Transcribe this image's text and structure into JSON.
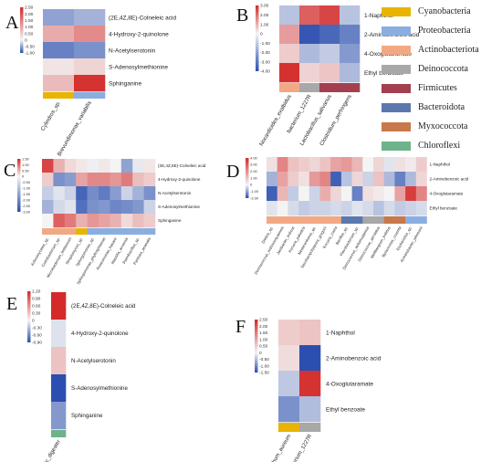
{
  "colors": {
    "red": "#d42a2a",
    "white": "#f4f4f4",
    "blue": "#2b4fb0"
  },
  "legend": [
    {
      "label": "Cyanobacteria",
      "color": "#e8b400"
    },
    {
      "label": "Proteobacteria",
      "color": "#8aaee0"
    },
    {
      "label": "Actinobacteriota",
      "color": "#f2a983"
    },
    {
      "label": "Deinococcota",
      "color": "#a8a8a8"
    },
    {
      "label": "Firmicutes",
      "color": "#a3404f"
    },
    {
      "label": "Bacteroidota",
      "color": "#5b78ad"
    },
    {
      "label": "Myxococcota",
      "color": "#c8784a"
    },
    {
      "label": "Chloroflexi",
      "color": "#6eb38a"
    }
  ],
  "chart_data": [
    {
      "id": "panel-a",
      "panel_label": "A",
      "type": "heatmap",
      "scale_ticks": [
        "2.50",
        "2.00",
        "1.50",
        "1.00",
        "0.50",
        "0",
        "-0.50",
        "-1.00"
      ],
      "vmin": -1,
      "vmax": 2.5,
      "rows": [
        "(2E,4Z,8E)-Colneleic acid",
        "4-Hydroxy-2-quinolone",
        "N-Acetylserotonin",
        "S-Adenosylmethionine",
        "Sphinganine"
      ],
      "columns": [
        "Cylindros_sp.",
        "Brevundimonas_variabilis"
      ],
      "column_groups": [
        "Cyanobacteria",
        "Proteobacteria"
      ],
      "values": [
        [
          -0.5,
          -0.4
        ],
        [
          0.9,
          1.3
        ],
        [
          -0.7,
          -0.6
        ],
        [
          0.2,
          0.4
        ],
        [
          0.7,
          2.4
        ]
      ]
    },
    {
      "id": "panel-b",
      "panel_label": "B",
      "type": "heatmap",
      "scale_ticks": [
        "3.00",
        "2.00",
        "1.00",
        "0",
        "-1.00",
        "-2.00",
        "-3.00",
        "-4.00"
      ],
      "vmin": -4,
      "vmax": 3,
      "rows": [
        "1-Naphthol",
        "2-Aminobenzoic acid",
        "4-Oxoglutaramate",
        "Ethyl benzoate"
      ],
      "columns": [
        "Nocardioides_exalbidus",
        "bacterium_1227R",
        "Lactobacillus_salivarius",
        "Clostridium_perfringens"
      ],
      "column_groups": [
        "Actinobacteriota",
        "Deinococcota",
        "Firmicutes",
        "Firmicutes"
      ],
      "values": [
        [
          -1.2,
          2.2,
          2.6,
          -1.2
        ],
        [
          1.3,
          -3.8,
          -3.4,
          -2.8
        ],
        [
          0.6,
          -1.4,
          -1.0,
          -2.2
        ],
        [
          2.9,
          0.5,
          0.7,
          -1.4
        ]
      ]
    },
    {
      "id": "panel-c",
      "panel_label": "C",
      "type": "heatmap",
      "scale_ticks": [
        "1.50",
        "1.00",
        "0.50",
        "0",
        "-0.50",
        "-1.00",
        "-1.50",
        "-2.00",
        "-2.50",
        "-3.00"
      ],
      "vmin": -3,
      "vmax": 1.5,
      "rows": [
        "(2E,4Z,8E)-Colneleic acid",
        "4-Hydroxy-2-quinolone",
        "N-Acetylserotonin",
        "S-Adenosylmethionine",
        "Sphinganine"
      ],
      "columns": [
        "Actinomycetes_sp.",
        "Curtobacterium_sp.",
        "Microbacterium_testaceum",
        "Streptomyces_sp.",
        "Sphingomonas_sp.",
        "Sphingomonas_phyllosphaerae",
        "Roseomonas_hasanii",
        "Massilia_arvensis",
        "Paenibacillus_sp.",
        "Pantoea_ananatis"
      ],
      "column_groups": [
        "Actinobacteriota",
        "Actinobacteriota",
        "Actinobacteriota",
        "Cyanobacteria",
        "Proteobacteria",
        "Proteobacteria",
        "Proteobacteria",
        "Proteobacteria",
        "Proteobacteria",
        "Proteobacteria"
      ],
      "values": [
        [
          1.3,
          0.5,
          0.2,
          0.1,
          -0.1,
          0.1,
          0.0,
          -1.5,
          -0.2,
          0.1
        ],
        [
          0.3,
          -1.8,
          -1.6,
          0.6,
          0.8,
          0.8,
          0.7,
          0.9,
          0.4,
          0.3
        ],
        [
          -0.7,
          -0.3,
          -0.6,
          -2.6,
          -1.9,
          -2.2,
          -1.6,
          -0.6,
          -1.2,
          -1.8
        ],
        [
          -1.2,
          -0.5,
          -0.3,
          -2.4,
          -1.8,
          -1.7,
          -2.0,
          -1.9,
          -1.7,
          -0.6
        ],
        [
          0.0,
          1.1,
          0.9,
          0.5,
          0.7,
          0.6,
          0.5,
          0.2,
          0.4,
          0.3
        ]
      ]
    },
    {
      "id": "panel-d",
      "panel_label": "D",
      "type": "heatmap",
      "scale_ticks": [
        "4.00",
        "3.00",
        "2.00",
        "1.00",
        "0",
        "-1.00",
        "-2.00"
      ],
      "vmin": -2,
      "vmax": 4,
      "rows": [
        "1-Naphthol",
        "2-Aminobenzoic acid",
        "4-Oxoglutaramate",
        "Ethyl benzoate"
      ],
      "columns": [
        "Dietzia_sp.",
        "Dermacoccus_nishinomiyaensis",
        "Janibacter_indicus",
        "Kocuria_palustris",
        "Nesterenkonia_sp.",
        "Saccharopolyspora_gregorii",
        "Kocuria_rosea",
        "Bacillus_sp.",
        "Flavobacterium_sp.",
        "Deinococcus_wulumuqiensis",
        "Deinococcus_aerolatus",
        "Melittangium_boletus",
        "Byssovorax_cruenta",
        "Escherichia_sp.",
        "Acinetobacter_johnsonii"
      ],
      "column_groups": [
        "Actinobacteriota",
        "Actinobacteriota",
        "Actinobacteriota",
        "Actinobacteriota",
        "Actinobacteriota",
        "Actinobacteriota",
        "Actinobacteriota",
        "Bacteroidota",
        "Bacteroidota",
        "Deinococcota",
        "Deinococcota",
        "Myxococcota",
        "Myxococcota",
        "Proteobacteria",
        "Proteobacteria"
      ],
      "values": [
        [
          0.4,
          2.2,
          1.0,
          0.8,
          0.6,
          1.0,
          1.6,
          1.8,
          1.2,
          0.0,
          0.6,
          -0.2,
          0.4,
          0.2,
          0.8
        ],
        [
          -0.8,
          1.6,
          0.8,
          0.4,
          1.8,
          2.2,
          -1.8,
          -0.6,
          0.6,
          -0.4,
          1.0,
          -0.7,
          -1.4,
          -0.7,
          0.6
        ],
        [
          -1.8,
          1.2,
          -0.5,
          0.0,
          -0.4,
          1.4,
          0.6,
          0.0,
          -1.4,
          0.4,
          0.2,
          0.0,
          1.6,
          3.6,
          2.2
        ],
        [
          -0.2,
          0.0,
          -0.3,
          -0.5,
          -0.4,
          -0.4,
          -0.3,
          -0.4,
          -0.2,
          -0.3,
          -0.6,
          -0.3,
          -0.5,
          -0.4,
          -0.3
        ]
      ]
    },
    {
      "id": "panel-e",
      "panel_label": "E",
      "type": "heatmap",
      "scale_ticks": [
        "1.20",
        "0.90",
        "0.60",
        "0.30",
        "0",
        "-0.30",
        "-0.60",
        "-0.90"
      ],
      "vmin": -0.9,
      "vmax": 1.2,
      "rows": [
        "(2E,4Z,8E)-Colneleic acid",
        "4-Hydroxy-2-quinolone",
        "N-Acetylserotonin",
        "S-Adenosylmethionine",
        "Sphinganine"
      ],
      "columns": [
        "anaerobic_digester"
      ],
      "column_groups": [
        "Chloroflexi"
      ],
      "values": [
        [
          1.2
        ],
        [
          -0.1
        ],
        [
          0.3
        ],
        [
          -0.9
        ],
        [
          -0.5
        ]
      ]
    },
    {
      "id": "panel-f",
      "panel_label": "F",
      "type": "heatmap",
      "scale_ticks": [
        "2.50",
        "2.00",
        "1.50",
        "1.00",
        "0.50",
        "0",
        "-0.50",
        "-1.00",
        "-1.50"
      ],
      "vmin": -1.5,
      "vmax": 2.5,
      "rows": [
        "1-Naphthol",
        "2-Aminobenzoic acid",
        "4-Oxoglutaramate",
        "Ethyl benzoate"
      ],
      "columns": [
        "Acrostichum_aureum",
        "bacterium_1227R"
      ],
      "column_groups": [
        "Cyanobacteria",
        "Deinococcota"
      ],
      "values": [
        [
          0.5,
          0.6
        ],
        [
          0.3,
          -1.5
        ],
        [
          -0.4,
          2.4
        ],
        [
          -0.9,
          -0.5
        ]
      ]
    }
  ]
}
